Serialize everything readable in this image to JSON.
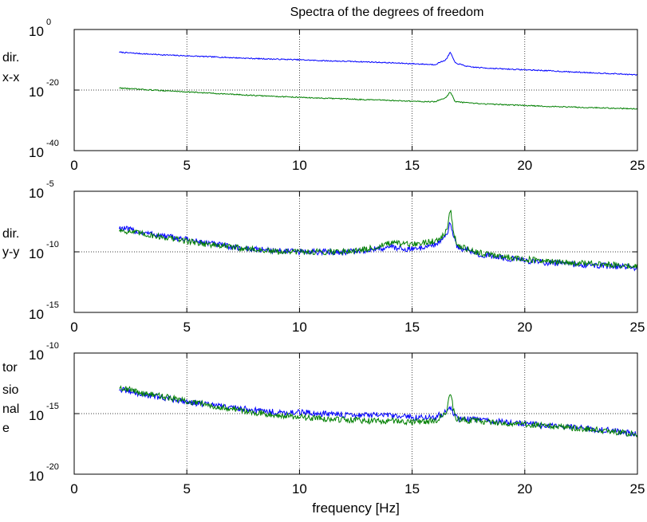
{
  "figure": {
    "title": "Spectra of the degrees of freedom",
    "xlabel": "frequency [Hz]",
    "series_colors": [
      "#0000ff",
      "#007f00"
    ]
  },
  "chart_data": [
    {
      "type": "line",
      "title": "Spectra of the degrees of freedom",
      "ylabel_lines": [
        "dir.",
        "x-x"
      ],
      "yscale": "log",
      "xlim": [
        0,
        25
      ],
      "ylim": [
        1e-40,
        1.0
      ],
      "xticks": [
        "0",
        "5",
        "10",
        "15",
        "20",
        "25"
      ],
      "yticks": [
        {
          "base": "10",
          "exp": "0"
        },
        {
          "base": "10",
          "exp": "-20"
        },
        {
          "base": "10",
          "exp": "-40"
        }
      ],
      "grid": true,
      "x": [
        2,
        3,
        4,
        5,
        6,
        7,
        8,
        9,
        10,
        11,
        12,
        13,
        14,
        15,
        16,
        16.5,
        16.7,
        16.9,
        17.5,
        18,
        19,
        20,
        21,
        22,
        23,
        24,
        25
      ],
      "series": [
        {
          "color": "#0000ff",
          "log10": [
            -7.5,
            -8.0,
            -8.4,
            -8.7,
            -9.0,
            -9.3,
            -9.6,
            -9.8,
            -10.0,
            -10.3,
            -10.5,
            -10.7,
            -11.0,
            -11.3,
            -11.6,
            -10.0,
            -7.5,
            -11.0,
            -12.3,
            -12.6,
            -13.0,
            -13.3,
            -13.6,
            -14.0,
            -14.3,
            -14.6,
            -15.0
          ]
        },
        {
          "color": "#007f00",
          "log10": [
            -19.3,
            -19.8,
            -20.2,
            -20.6,
            -21.0,
            -21.4,
            -21.8,
            -22.1,
            -22.4,
            -22.7,
            -22.9,
            -23.2,
            -23.4,
            -23.7,
            -23.9,
            -22.5,
            -20.5,
            -23.8,
            -24.3,
            -24.5,
            -24.8,
            -25.1,
            -25.4,
            -25.6,
            -25.8,
            -26.0,
            -26.2
          ]
        }
      ]
    },
    {
      "type": "line",
      "ylabel_lines": [
        "dir.",
        "y-y"
      ],
      "yscale": "log",
      "xlim": [
        0,
        25
      ],
      "ylim": [
        1e-15,
        1e-05
      ],
      "xticks": [
        "0",
        "5",
        "10",
        "15",
        "20",
        "25"
      ],
      "yticks": [
        {
          "base": "10",
          "exp": "-5"
        },
        {
          "base": "10",
          "exp": "-10"
        },
        {
          "base": "10",
          "exp": "-15"
        }
      ],
      "grid": true,
      "x": [
        2,
        3,
        4,
        5,
        6,
        7,
        8,
        9,
        10,
        11,
        12,
        13,
        14,
        15,
        16,
        16.4,
        16.6,
        16.7,
        16.8,
        17,
        18,
        19,
        20,
        21,
        22,
        23,
        24,
        25
      ],
      "series": [
        {
          "color": "#0000ff",
          "log10": [
            -8.0,
            -8.4,
            -8.7,
            -9.0,
            -9.3,
            -9.6,
            -9.8,
            -9.9,
            -10.0,
            -10.0,
            -10.0,
            -9.9,
            -9.6,
            -9.8,
            -9.4,
            -9.0,
            -8.3,
            -7.3,
            -8.5,
            -9.6,
            -10.2,
            -10.5,
            -10.7,
            -10.9,
            -11.0,
            -11.1,
            -11.2,
            -11.3
          ]
        },
        {
          "color": "#007f00",
          "log10": [
            -8.2,
            -8.5,
            -8.8,
            -9.1,
            -9.4,
            -9.6,
            -9.8,
            -10.0,
            -10.0,
            -10.0,
            -9.95,
            -9.8,
            -9.3,
            -9.4,
            -9.1,
            -8.6,
            -7.7,
            -6.4,
            -8.0,
            -9.5,
            -10.1,
            -10.4,
            -10.6,
            -10.8,
            -10.9,
            -11.0,
            -11.1,
            -11.2
          ]
        }
      ]
    },
    {
      "type": "line",
      "ylabel_lines": [
        "tor",
        "sio",
        "nal",
        "e"
      ],
      "yscale": "log",
      "xlim": [
        0,
        25
      ],
      "ylim": [
        1e-20,
        1e-10
      ],
      "xticks": [
        "0",
        "5",
        "10",
        "15",
        "20",
        "25"
      ],
      "yticks": [
        {
          "base": "10",
          "exp": "-10"
        },
        {
          "base": "10",
          "exp": "-15"
        },
        {
          "base": "10",
          "exp": "-20"
        }
      ],
      "grid": true,
      "x": [
        2,
        3,
        4,
        5,
        6,
        7,
        8,
        9,
        10,
        11,
        12,
        13,
        14,
        15,
        16,
        16.5,
        16.7,
        16.9,
        17,
        18,
        19,
        20,
        21,
        22,
        23,
        24,
        25
      ],
      "series": [
        {
          "color": "#0000ff",
          "log10": [
            -13.0,
            -13.4,
            -13.7,
            -14.0,
            -14.3,
            -14.5,
            -14.7,
            -14.9,
            -14.9,
            -15.0,
            -15.1,
            -15.1,
            -15.2,
            -15.3,
            -15.3,
            -14.9,
            -14.5,
            -15.1,
            -15.4,
            -15.5,
            -15.7,
            -15.8,
            -16.0,
            -16.1,
            -16.3,
            -16.4,
            -16.7
          ]
        },
        {
          "color": "#007f00",
          "log10": [
            -12.8,
            -13.3,
            -13.6,
            -14.0,
            -14.3,
            -14.6,
            -14.9,
            -15.1,
            -15.3,
            -15.4,
            -15.5,
            -15.6,
            -15.6,
            -15.7,
            -15.6,
            -15.0,
            -13.3,
            -15.3,
            -15.5,
            -15.6,
            -15.8,
            -15.9,
            -16.0,
            -16.2,
            -16.3,
            -16.5,
            -16.7
          ]
        }
      ]
    }
  ]
}
